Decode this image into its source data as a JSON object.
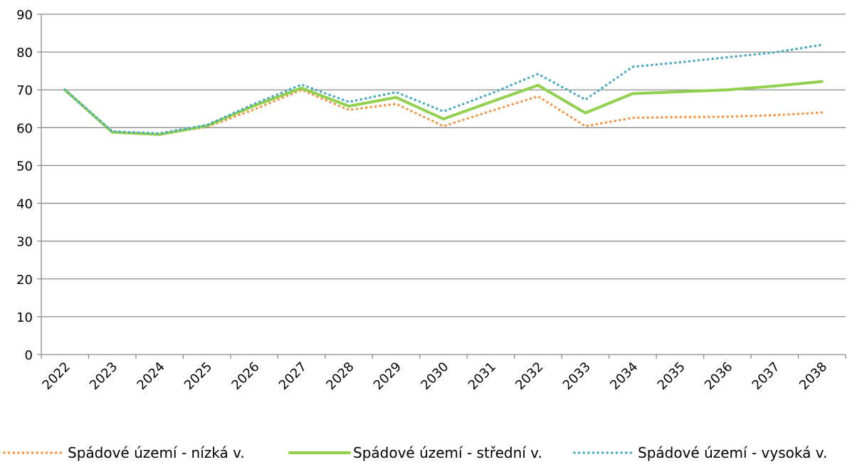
{
  "chart_data": {
    "type": "line",
    "title": "",
    "xlabel": "",
    "ylabel": "",
    "categories": [
      "2022",
      "2023",
      "2024",
      "2025",
      "2026",
      "2027",
      "2028",
      "2029",
      "2030",
      "2031",
      "2032",
      "2033",
      "2034",
      "2035",
      "2036",
      "2037",
      "2038"
    ],
    "ylim": [
      0,
      90
    ],
    "yticks": [
      0,
      10,
      20,
      30,
      40,
      50,
      60,
      70,
      80,
      90
    ],
    "grid": "horizontal",
    "legend_position": "bottom",
    "series": [
      {
        "name": "Spádové území - nízká v.",
        "color": "#F79646",
        "style": "dotted",
        "values": [
          70,
          59,
          58.3,
          60.2,
          64.8,
          70,
          64.7,
          66.3,
          60.4,
          64.4,
          68.3,
          60.4,
          62.6,
          62.8,
          62.9,
          63.3,
          64
        ]
      },
      {
        "name": "Spádové území - střední v.",
        "color": "#92D050",
        "style": "solid",
        "values": [
          70,
          58.8,
          58.2,
          60.5,
          65.8,
          70.5,
          65.7,
          68,
          62.3,
          66.8,
          71.2,
          63.9,
          69,
          69.5,
          70,
          71,
          72.2
        ]
      },
      {
        "name": "Spádové území - vysoká v.",
        "color": "#4BACC6",
        "style": "dotted",
        "values": [
          70,
          59,
          58.5,
          60.7,
          66.3,
          71.4,
          66.8,
          69.4,
          64.3,
          69,
          74.2,
          67.4,
          76.1,
          77.3,
          78.6,
          79.9,
          81.9
        ]
      }
    ]
  }
}
